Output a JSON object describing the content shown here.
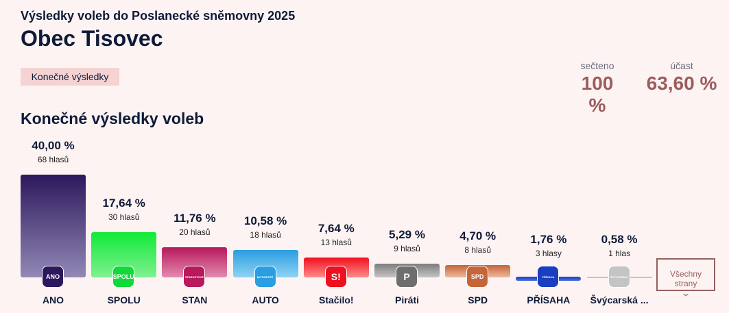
{
  "header": {
    "supertitle": "Výsledky voleb do Poslanecké sněmovny 2025",
    "title": "Obec Tisovec",
    "badge": "Konečné výsledky",
    "counted_label": "sečteno",
    "counted_value": "100 %",
    "turnout_label": "účast",
    "turnout_value": "63,60 %"
  },
  "section_title": "Konečné výsledky voleb",
  "all_parties_label": "Všechny strany",
  "chart_data": {
    "type": "bar",
    "title": "Konečné výsledky voleb",
    "categories": [
      "ANO",
      "SPOLU",
      "STAN",
      "AUTO",
      "Stačilo!",
      "Piráti",
      "SPD",
      "PŘÍSAHA",
      "Švýcarská ..."
    ],
    "values": [
      40.0,
      17.64,
      11.76,
      10.58,
      7.64,
      5.29,
      4.7,
      1.76,
      0.58
    ],
    "value_labels": [
      "40,00 %",
      "17,64 %",
      "11,76 %",
      "10,58 %",
      "7,64 %",
      "5,29 %",
      "4,70 %",
      "1,76 %",
      "0,58 %"
    ],
    "votes_labels": [
      "68 hlasů",
      "30 hlasů",
      "20 hlasů",
      "18 hlasů",
      "13 hlasů",
      "9 hlasů",
      "8 hlasů",
      "3 hlasy",
      "1 hlas"
    ],
    "logo_text": [
      "ANO",
      "SPOLU",
      "STAROSTOVÉ",
      "MOTORISTÉ",
      "S!",
      "P",
      "SPD",
      "PŘÍSAHA",
      "ŠVÝCARSKÁ"
    ],
    "colors": [
      [
        "#2c185c",
        "#9289b5"
      ],
      [
        "#10ea38",
        "#80f090"
      ],
      [
        "#b8185c",
        "#e28bae"
      ],
      [
        "#2a9ee0",
        "#90d2f5"
      ],
      [
        "#f0101e",
        "#ff8a8a"
      ],
      [
        "#7d7d7d",
        "#c4c4c4"
      ],
      [
        "#c4653a",
        "#f0b898"
      ],
      [
        "#1a3ec0",
        "#4a6ee0"
      ],
      [
        "#c4c4c4",
        "#c4c4c4"
      ]
    ],
    "logo_colors": [
      "#2c185c",
      "#12d83a",
      "#b8185c",
      "#2a9ee0",
      "#ee1020",
      "#6e6e6e",
      "#c4653a",
      "#1a3ec0",
      "#c4c4c4"
    ],
    "ylim": [
      0,
      40
    ]
  }
}
